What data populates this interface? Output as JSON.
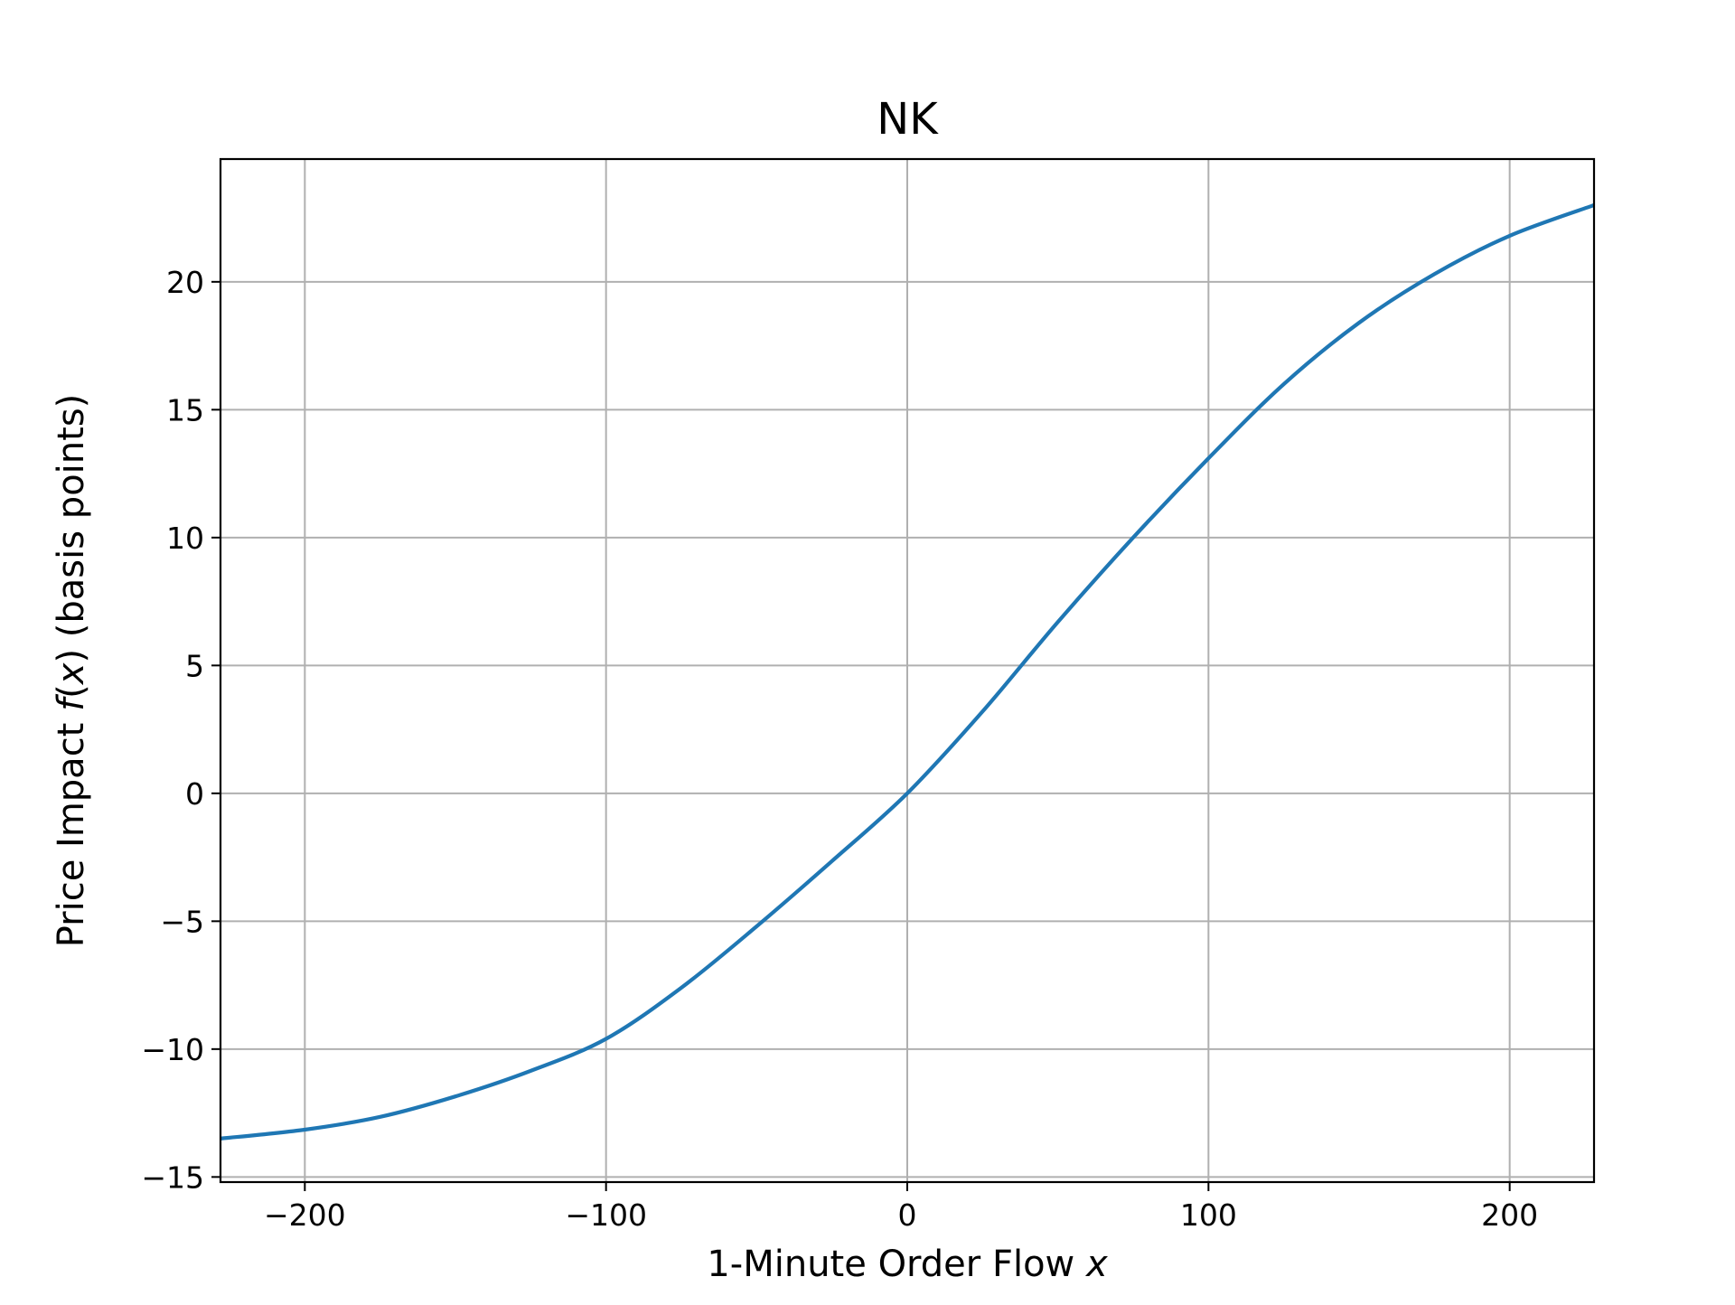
{
  "chart_data": {
    "type": "line",
    "title": "NK",
    "xlabel_prefix": "1-Minute Order Flow ",
    "xlabel_var": "x",
    "ylabel_prefix": "Price Impact ",
    "ylabel_func": "f",
    "ylabel_open": "(",
    "ylabel_var": "x",
    "ylabel_suffix": ") (basis points)",
    "xlim": [
      -228,
      228
    ],
    "ylim": [
      -15.2,
      24.8
    ],
    "x_ticks": [
      -200,
      -100,
      0,
      100,
      200
    ],
    "x_tick_labels": [
      "−200",
      "−100",
      "0",
      "100",
      "200"
    ],
    "y_ticks": [
      -15,
      -10,
      -5,
      0,
      5,
      10,
      15,
      20
    ],
    "y_tick_labels": [
      "−15",
      "−10",
      "−5",
      "0",
      "5",
      "10",
      "15",
      "20"
    ],
    "grid": true,
    "series": [
      {
        "color": "#1f77b4",
        "x": [
          -228,
          -200,
          -175,
          -150,
          -125,
          -100,
          -75,
          -50,
          -25,
          0,
          25,
          50,
          75,
          100,
          125,
          150,
          175,
          200,
          228
        ],
        "y": [
          -13.5,
          -13.15,
          -12.65,
          -11.85,
          -10.85,
          -9.6,
          -7.6,
          -5.2,
          -2.65,
          0.0,
          3.2,
          6.7,
          10.0,
          13.1,
          16.0,
          18.4,
          20.3,
          21.8,
          23.0
        ]
      }
    ]
  }
}
